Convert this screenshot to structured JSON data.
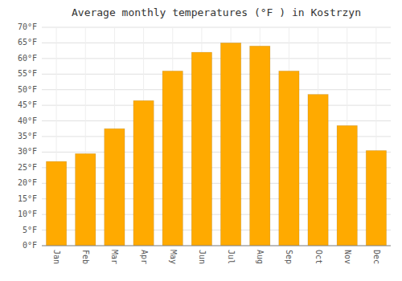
{
  "chart_data": {
    "type": "bar",
    "title": "Average monthly temperatures (°F ) in Kostrzyn",
    "categories": [
      "Jan",
      "Feb",
      "Mar",
      "Apr",
      "May",
      "Jun",
      "Jul",
      "Aug",
      "Sep",
      "Oct",
      "Nov",
      "Dec"
    ],
    "values": [
      27,
      29.5,
      37.5,
      46.5,
      56,
      62,
      65,
      64,
      56,
      48.5,
      38.5,
      30.5
    ],
    "color": "#FFAA00",
    "ylim": [
      0,
      70
    ],
    "yticks": [
      {
        "value": 0,
        "label": "0°F"
      },
      {
        "value": 5,
        "label": "5°F"
      },
      {
        "value": 10,
        "label": "10°F"
      },
      {
        "value": 15,
        "label": "15°F"
      },
      {
        "value": 20,
        "label": "20°F"
      },
      {
        "value": 25,
        "label": "25°F"
      },
      {
        "value": 30,
        "label": "30°F"
      },
      {
        "value": 35,
        "label": "35°F"
      },
      {
        "value": 40,
        "label": "40°F"
      },
      {
        "value": 45,
        "label": "45°F"
      },
      {
        "value": 50,
        "label": "50°F"
      },
      {
        "value": 55,
        "label": "55°F"
      },
      {
        "value": 60,
        "label": "60°F"
      },
      {
        "value": 65,
        "label": "65°F"
      },
      {
        "value": 70,
        "label": "70°F"
      }
    ],
    "grid": true
  }
}
